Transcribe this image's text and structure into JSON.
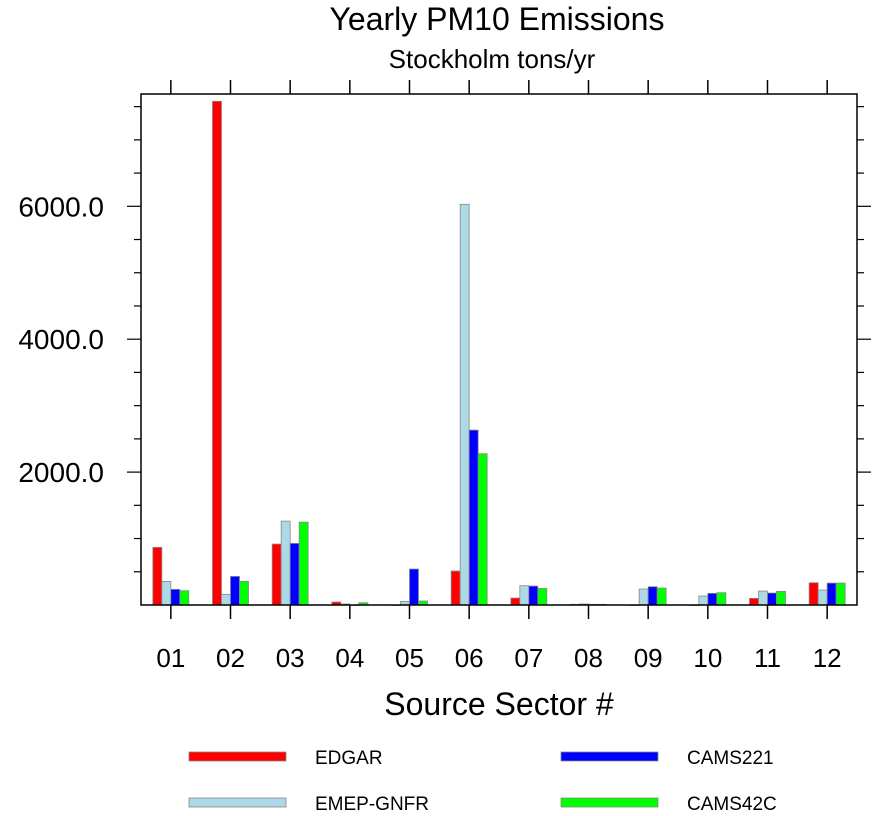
{
  "chart_data": {
    "type": "bar",
    "title": "Yearly PM10 Emissions",
    "subtitle": "Stockholm tons/yr",
    "xlabel": "Source Sector #",
    "ylabel": "",
    "ylim": [
      0,
      7690
    ],
    "yticks": [
      2000,
      4000,
      6000
    ],
    "ytick_labels": [
      "2000.0",
      "4000.0",
      "6000.0"
    ],
    "y_minor_step": 500,
    "grid": false,
    "legend_position": "bottom",
    "categories": [
      "01",
      "02",
      "03",
      "04",
      "05",
      "06",
      "07",
      "08",
      "09",
      "10",
      "11",
      "12"
    ],
    "series": [
      {
        "name": "EDGAR",
        "color": "#ff0000",
        "values": [
          867,
          7580,
          917,
          45,
          0,
          511,
          105,
          10,
          0,
          0,
          100,
          335
        ]
      },
      {
        "name": "EMEP-GNFR",
        "color": "#add8e6",
        "values": [
          355,
          160,
          1262,
          15,
          55,
          6030,
          290,
          15,
          240,
          135,
          210,
          225
        ]
      },
      {
        "name": "CAMS221",
        "color": "#0000ff",
        "values": [
          235,
          430,
          927,
          0,
          541,
          2632,
          285,
          10,
          275,
          175,
          180,
          330
        ]
      },
      {
        "name": "CAMS42C",
        "color": "#00ff00",
        "values": [
          215,
          355,
          1247,
          35,
          60,
          2276,
          250,
          10,
          255,
          185,
          205,
          330
        ]
      }
    ]
  }
}
